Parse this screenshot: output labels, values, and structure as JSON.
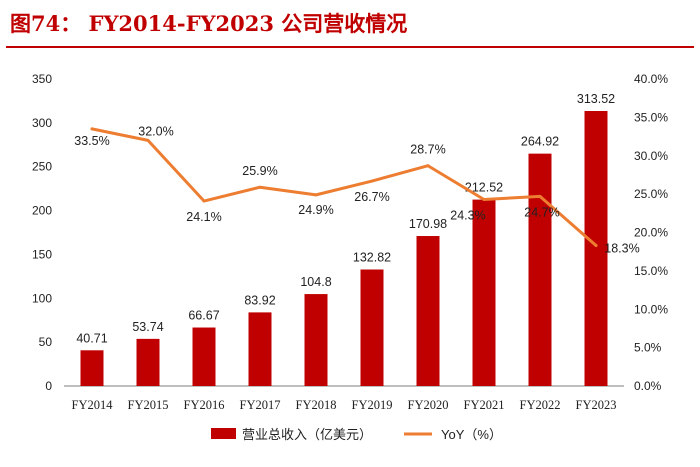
{
  "figure": {
    "title": "图74： FY2014-FY2023 公司营收情况"
  },
  "colors": {
    "bar": "#c00000",
    "line": "#ed7d31",
    "title": "#c00000",
    "axis": "#7f7f7f"
  },
  "chart_data": {
    "type": "bar",
    "categories": [
      "FY2014",
      "FY2015",
      "FY2016",
      "FY2017",
      "FY2018",
      "FY2019",
      "FY2020",
      "FY2021",
      "FY2022",
      "FY2023"
    ],
    "series": [
      {
        "name": "营业总收入（亿美元）",
        "type": "bar",
        "axis": "left",
        "values": [
          40.71,
          53.74,
          66.67,
          83.92,
          104.8,
          132.82,
          170.98,
          212.52,
          264.92,
          313.52
        ],
        "labels": [
          "40.71",
          "53.74",
          "66.67",
          "83.92",
          "104.8",
          "132.82",
          "170.98",
          "212.52",
          "264.92",
          "313.52"
        ]
      },
      {
        "name": "YoY（%）",
        "type": "line",
        "axis": "right",
        "values": [
          33.5,
          32.0,
          24.1,
          25.9,
          24.9,
          26.7,
          28.7,
          24.3,
          24.7,
          18.3
        ],
        "labels": [
          "33.5%",
          "32.0%",
          "24.1%",
          "25.9%",
          "24.9%",
          "26.7%",
          "28.7%",
          "24.3%",
          "24.7%",
          "18.3%"
        ]
      }
    ],
    "y_left": {
      "min": 0,
      "max": 350,
      "ticks": [
        "0",
        "50",
        "100",
        "150",
        "200",
        "250",
        "300",
        "350"
      ]
    },
    "y_right": {
      "min": 0,
      "max": 40,
      "ticks": [
        "0.0%",
        "5.0%",
        "10.0%",
        "15.0%",
        "20.0%",
        "25.0%",
        "30.0%",
        "35.0%",
        "40.0%"
      ]
    },
    "grid": false,
    "legend_position": "bottom"
  }
}
